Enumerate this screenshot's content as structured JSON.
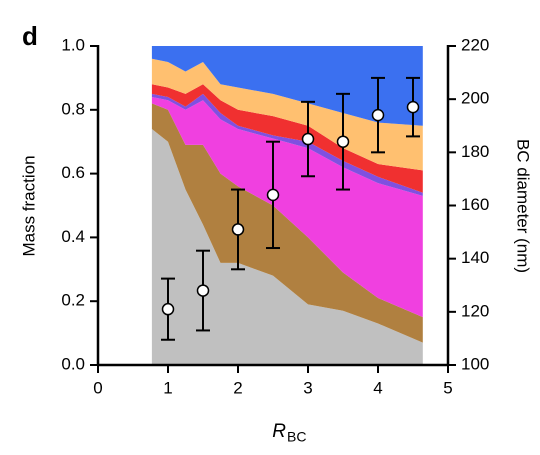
{
  "chart_data": {
    "type": "stacked_area",
    "panel_label": "d",
    "xlabel": "R",
    "xlabel_subscript": "BC",
    "ylabel": "Mass fraction",
    "y2label": "BC diameter (nm)",
    "xlim": [
      0,
      5
    ],
    "ylim": [
      0,
      1
    ],
    "y2lim": [
      100,
      220
    ],
    "xticks": [
      0,
      1,
      2,
      3,
      4,
      5
    ],
    "yticks": [
      {
        "value": 0,
        "label": "0.0"
      },
      {
        "value": 0.2,
        "label": "0.2"
      },
      {
        "value": 0.4,
        "label": "0.4"
      },
      {
        "value": 0.6,
        "label": "0.6"
      },
      {
        "value": 0.8,
        "label": "0.8"
      },
      {
        "value": 1,
        "label": "1.0"
      }
    ],
    "y2ticks": [
      100,
      120,
      140,
      160,
      180,
      200,
      220
    ],
    "x": [
      0.77,
      1,
      1.25,
      1.5,
      1.75,
      2,
      2.5,
      3,
      3.5,
      4,
      4.64
    ],
    "series": [
      {
        "color": "#c0c0c0",
        "values": [
          0.74,
          0.7,
          0.55,
          0.44,
          0.32,
          0.32,
          0.28,
          0.19,
          0.17,
          0.13,
          0.07
        ]
      },
      {
        "color": "#b08040",
        "values": [
          0.08,
          0.1,
          0.14,
          0.25,
          0.28,
          0.24,
          0.22,
          0.21,
          0.12,
          0.08,
          0.08
        ]
      },
      {
        "color": "#f040e0",
        "values": [
          0.02,
          0.03,
          0.11,
          0.14,
          0.17,
          0.18,
          0.21,
          0.28,
          0.33,
          0.36,
          0.38
        ]
      },
      {
        "color": "#8050e0",
        "values": [
          0.01,
          0.01,
          0.01,
          0.02,
          0.02,
          0.01,
          0.01,
          0.02,
          0.02,
          0.02,
          0.01
        ]
      },
      {
        "color": "#f03030",
        "values": [
          0.03,
          0.03,
          0.04,
          0.03,
          0.04,
          0.05,
          0.06,
          0.05,
          0.04,
          0.04,
          0.07
        ]
      },
      {
        "color": "#ffc070",
        "values": [
          0.08,
          0.08,
          0.07,
          0.07,
          0.05,
          0.07,
          0.07,
          0.07,
          0.11,
          0.13,
          0.14
        ]
      },
      {
        "color": "#3b70f0",
        "values": [
          0.04,
          0.05,
          0.08,
          0.05,
          0.12,
          0.13,
          0.15,
          0.18,
          0.21,
          0.24,
          0.25
        ]
      }
    ],
    "points": {
      "type": "scatter",
      "axis": "y2",
      "color": "#ffffff",
      "x": [
        1,
        1.5,
        2,
        2.5,
        3,
        3.5,
        4,
        4.5
      ],
      "values": [
        121,
        128,
        151,
        164,
        185,
        184,
        194,
        197
      ],
      "errors": [
        11.5,
        15,
        15,
        20,
        14,
        18,
        14,
        11
      ]
    }
  }
}
